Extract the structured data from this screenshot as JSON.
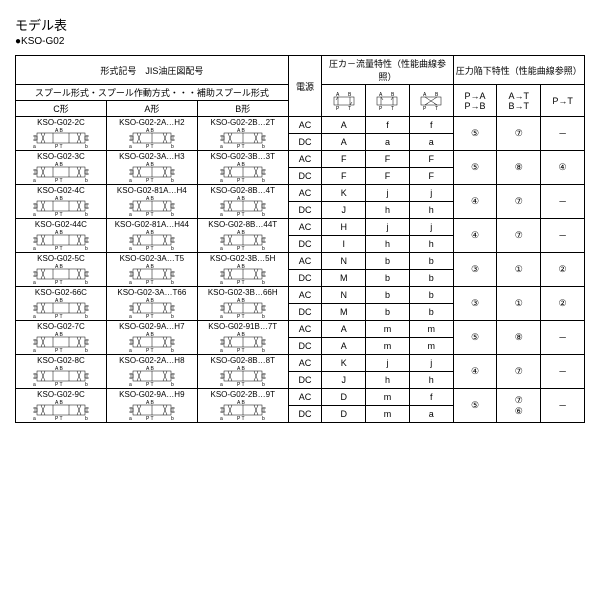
{
  "title": "モデル表",
  "subtitle": "●KSO-G02",
  "headers": {
    "model_title": "形式記号　JIS油圧図配号",
    "spool_title": "スプール形式・スプール作動方式・・・補助スプール形式",
    "c_type": "C形",
    "a_type": "A形",
    "b_type": "B形",
    "power": "電源",
    "flow_title": "圧カ－流量特性（性能曲線参照）",
    "drop_title": "圧力陥下特性（性能曲線参照）",
    "pa_pb": "P→A\nP→B",
    "at_bt": "A→T\nB→T",
    "pt": "P→T"
  },
  "header_diagrams": [
    "A↓↑B / P↑↓T",
    "↓A↓B / P↑T↑",
    "A↓B↓ / ↑P↑T"
  ],
  "rows": [
    {
      "c": "KSO-G02-2C",
      "a": "KSO-G02-2A…H2",
      "b": "KSO-G02-2B…2T",
      "lines": [
        {
          "power": "AC",
          "f1": "A",
          "f2": "f",
          "f3": "f"
        },
        {
          "power": "DC",
          "f1": "A",
          "f2": "a",
          "f3": "a"
        }
      ],
      "d1": "⑤",
      "d2": "⑦",
      "d3": "－"
    },
    {
      "c": "KSO-G02-3C",
      "a": "KSO-G02-3A…H3",
      "b": "KSO-G02-3B…3T",
      "lines": [
        {
          "power": "AC",
          "f1": "F",
          "f2": "F",
          "f3": "F"
        },
        {
          "power": "DC",
          "f1": "F",
          "f2": "F",
          "f3": "F"
        }
      ],
      "d1": "⑤",
      "d2": "⑧",
      "d3": "④"
    },
    {
      "c": "KSO-G02-4C",
      "a": "KSO-G02-81A…H4",
      "b": "KSO-G02-8B…4T",
      "lines": [
        {
          "power": "AC",
          "f1": "K",
          "f2": "j",
          "f3": "j"
        },
        {
          "power": "DC",
          "f1": "J",
          "f2": "h",
          "f3": "h"
        }
      ],
      "d1": "④",
      "d2": "⑦",
      "d3": "－"
    },
    {
      "c": "KSO-G02-44C",
      "a": "KSO-G02-81A…H44",
      "b": "KSO-G02-8B…44T",
      "lines": [
        {
          "power": "AC",
          "f1": "H",
          "f2": "j",
          "f3": "j"
        },
        {
          "power": "DC",
          "f1": "I",
          "f2": "h",
          "f3": "h"
        }
      ],
      "d1": "④",
      "d2": "⑦",
      "d3": "－"
    },
    {
      "c": "KSO-G02-5C",
      "a": "KSO-G02-3A…T5",
      "b": "KSO-G02-3B…5H",
      "lines": [
        {
          "power": "AC",
          "f1": "N",
          "f2": "b",
          "f3": "b"
        },
        {
          "power": "DC",
          "f1": "M",
          "f2": "b",
          "f3": "b"
        }
      ],
      "d1": "③",
      "d2": "①",
      "d3": "②"
    },
    {
      "c": "KSO-G02-66C",
      "a": "KSO-G02-3A…T66",
      "b": "KSO-G02-3B…66H",
      "lines": [
        {
          "power": "AC",
          "f1": "N",
          "f2": "b",
          "f3": "b"
        },
        {
          "power": "DC",
          "f1": "M",
          "f2": "b",
          "f3": "b"
        }
      ],
      "d1": "③",
      "d2": "①",
      "d3": "②"
    },
    {
      "c": "KSO-G02-7C",
      "a": "KSO-G02-9A…H7",
      "b": "KSO-G02-91B…7T",
      "lines": [
        {
          "power": "AC",
          "f1": "A",
          "f2": "m",
          "f3": "m"
        },
        {
          "power": "DC",
          "f1": "A",
          "f2": "m",
          "f3": "m"
        }
      ],
      "d1": "⑤",
      "d2": "⑧",
      "d3": "－"
    },
    {
      "c": "KSO-G02-8C",
      "a": "KSO-G02-2A…H8",
      "b": "KSO-G02-8B…8T",
      "lines": [
        {
          "power": "AC",
          "f1": "K",
          "f2": "j",
          "f3": "j"
        },
        {
          "power": "DC",
          "f1": "J",
          "f2": "h",
          "f3": "h"
        }
      ],
      "d1": "④",
      "d2": "⑦",
      "d3": "－"
    },
    {
      "c": "KSO-G02-9C",
      "a": "KSO-G02-9A…H9",
      "b": "KSO-G02-2B…9T",
      "lines": [
        {
          "power": "AC",
          "f1": "D",
          "f2": "m",
          "f3": "f"
        },
        {
          "power": "DC",
          "f1": "D",
          "f2": "m",
          "f3": "a"
        }
      ],
      "d1": "⑤",
      "d2": "⑦\n⑥",
      "d3": "－"
    }
  ]
}
